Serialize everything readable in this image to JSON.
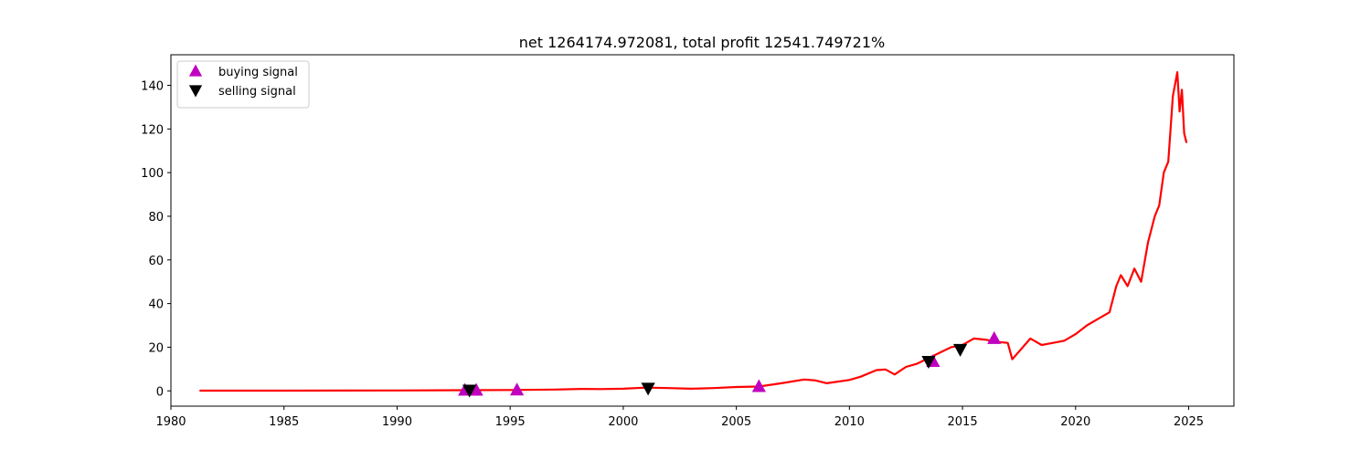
{
  "chart_data": {
    "type": "line",
    "title": "net 1264174.972081, total profit 12541.749721%",
    "xlabel": "",
    "ylabel": "",
    "xlim": [
      1980,
      2027
    ],
    "ylim": [
      -7,
      154
    ],
    "xticks": [
      1980,
      1985,
      1990,
      1995,
      2000,
      2005,
      2010,
      2015,
      2020,
      2025
    ],
    "xtick_labels": [
      "1980",
      "1985",
      "1990",
      "1995",
      "2000",
      "2005",
      "2010",
      "2015",
      "2020",
      "2025"
    ],
    "yticks": [
      0,
      20,
      40,
      60,
      80,
      100,
      120,
      140
    ],
    "ytick_labels": [
      "0",
      "20",
      "40",
      "60",
      "80",
      "100",
      "120",
      "140"
    ],
    "grid": false,
    "legend_position": "top-left",
    "series": [
      {
        "kind": "line",
        "color": "#ff0000",
        "points": [
          [
            1981.3,
            0.1
          ],
          [
            1985,
            0.1
          ],
          [
            1990,
            0.2
          ],
          [
            1993,
            0.3
          ],
          [
            1995,
            0.4
          ],
          [
            1997,
            0.6
          ],
          [
            1998.2,
            0.9
          ],
          [
            1999,
            0.8
          ],
          [
            2000,
            1.0
          ],
          [
            2001,
            1.5
          ],
          [
            2002,
            1.3
          ],
          [
            2003,
            1.0
          ],
          [
            2004,
            1.3
          ],
          [
            2005,
            1.8
          ],
          [
            2006,
            2.0
          ],
          [
            2007,
            3.5
          ],
          [
            2008,
            5.2
          ],
          [
            2008.5,
            4.8
          ],
          [
            2009,
            3.5
          ],
          [
            2010,
            5.0
          ],
          [
            2010.5,
            6.5
          ],
          [
            2011.2,
            9.5
          ],
          [
            2011.6,
            9.8
          ],
          [
            2012,
            7.5
          ],
          [
            2012.5,
            11.0
          ],
          [
            2013,
            12.5
          ],
          [
            2013.5,
            15.0
          ],
          [
            2014,
            17.5
          ],
          [
            2014.5,
            20.0
          ],
          [
            2015,
            21.0
          ],
          [
            2015.5,
            24.0
          ],
          [
            2016,
            23.5
          ],
          [
            2016.5,
            22.5
          ],
          [
            2017,
            22.0
          ],
          [
            2017.2,
            14.5
          ],
          [
            2017.5,
            18.0
          ],
          [
            2018,
            24.0
          ],
          [
            2018.5,
            21.0
          ],
          [
            2019,
            22.0
          ],
          [
            2019.5,
            23.0
          ],
          [
            2020,
            26.0
          ],
          [
            2020.5,
            30.0
          ],
          [
            2021,
            33.0
          ],
          [
            2021.5,
            36.0
          ],
          [
            2021.8,
            48.0
          ],
          [
            2022,
            53.0
          ],
          [
            2022.3,
            48.0
          ],
          [
            2022.6,
            56.0
          ],
          [
            2022.9,
            50.0
          ],
          [
            2023.2,
            68.0
          ],
          [
            2023.5,
            80.0
          ],
          [
            2023.7,
            85.0
          ],
          [
            2023.9,
            100.0
          ],
          [
            2024.1,
            105.0
          ],
          [
            2024.3,
            135.0
          ],
          [
            2024.5,
            146.0
          ],
          [
            2024.6,
            128.0
          ],
          [
            2024.7,
            138.0
          ],
          [
            2024.8,
            118.0
          ],
          [
            2024.9,
            114.0
          ]
        ]
      },
      {
        "kind": "markers",
        "marker": "triangle-up",
        "name": "buying signal",
        "color": "#bf00bf",
        "points": [
          [
            1993.0,
            0.3
          ],
          [
            1993.5,
            0.3
          ],
          [
            1995.3,
            0.4
          ],
          [
            2006.0,
            2.0
          ],
          [
            2013.7,
            13.5
          ],
          [
            2016.4,
            24.0
          ]
        ]
      },
      {
        "kind": "markers",
        "marker": "triangle-down",
        "name": "selling signal",
        "color": "#000000",
        "points": [
          [
            1993.2,
            0.3
          ],
          [
            2001.1,
            1.2
          ],
          [
            2013.5,
            13.5
          ],
          [
            2014.9,
            19.0
          ]
        ]
      }
    ]
  }
}
